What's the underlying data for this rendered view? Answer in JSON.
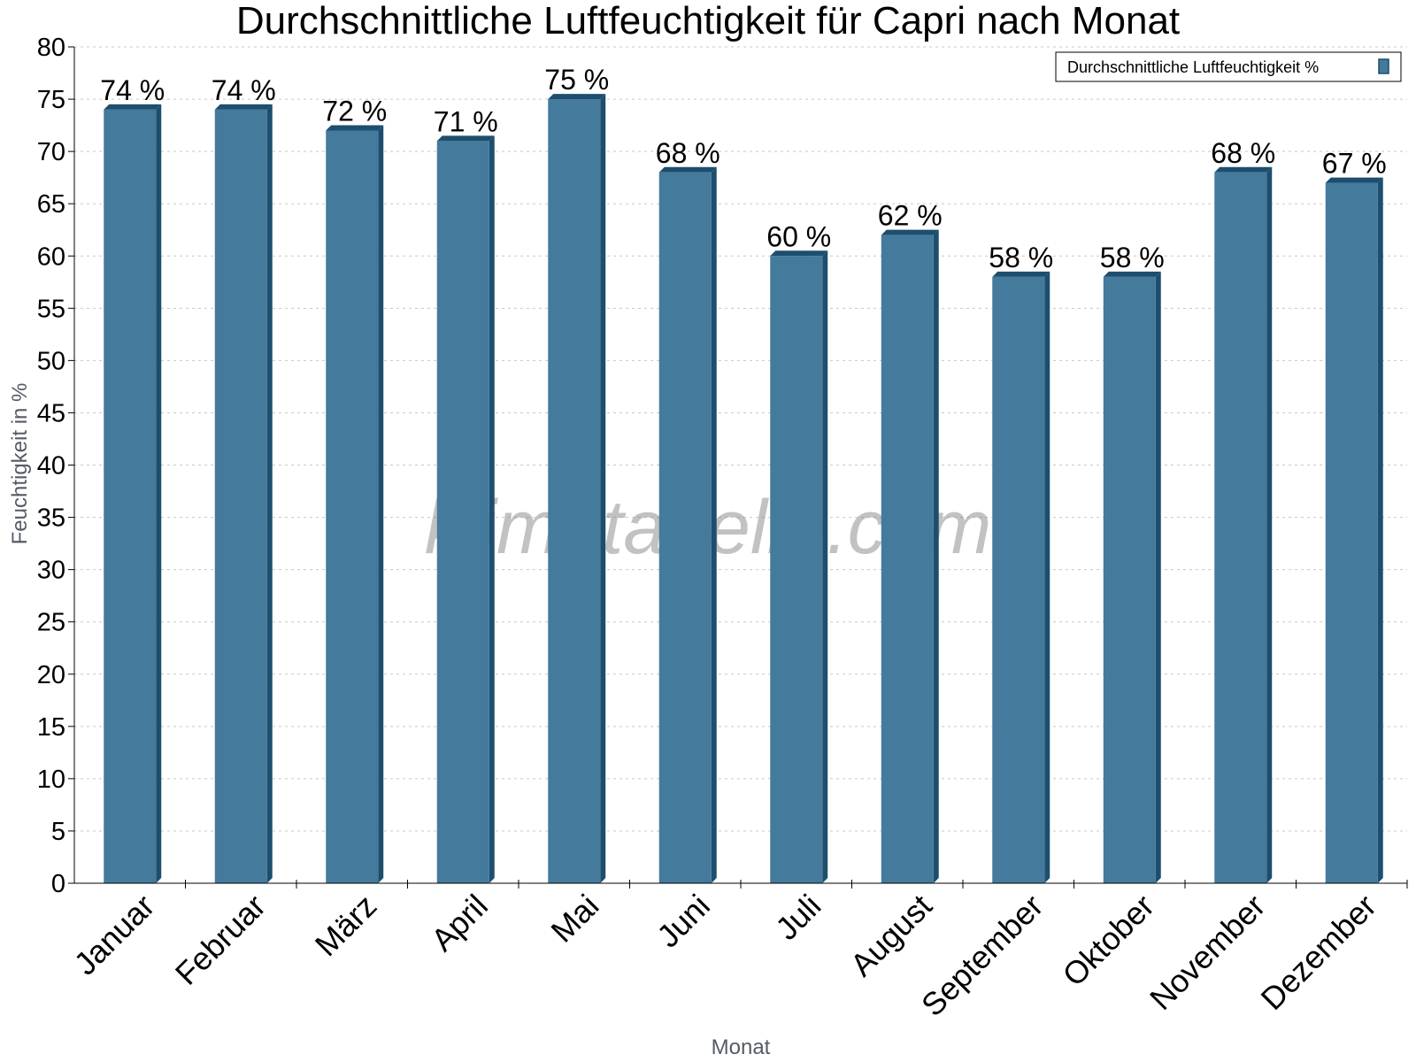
{
  "chart_data": {
    "type": "bar",
    "title": "Durchschnittliche Luftfeuchtigkeit für Capri nach Monat",
    "xlabel": "Monat",
    "ylabel": "Feuchtigkeit in %",
    "ylim": [
      0,
      80
    ],
    "ytick_step": 5,
    "grid": true,
    "legend_position": "top-right",
    "categories": [
      "Januar",
      "Februar",
      "März",
      "April",
      "Mai",
      "Juni",
      "Juli",
      "August",
      "September",
      "Oktober",
      "November",
      "Dezember"
    ],
    "series": [
      {
        "name": "Durchschnittliche Luftfeuchtigkeit %",
        "color": "#447a9c",
        "values": [
          74,
          74,
          72,
          71,
          75,
          68,
          60,
          62,
          58,
          58,
          68,
          67
        ]
      }
    ],
    "data_labels": [
      "74 %",
      "74 %",
      "72 %",
      "71 %",
      "75 %",
      "68 %",
      "60 %",
      "62 %",
      "58 %",
      "58 %",
      "68 %",
      "67 %"
    ],
    "watermark": "klimatabelle.com"
  }
}
